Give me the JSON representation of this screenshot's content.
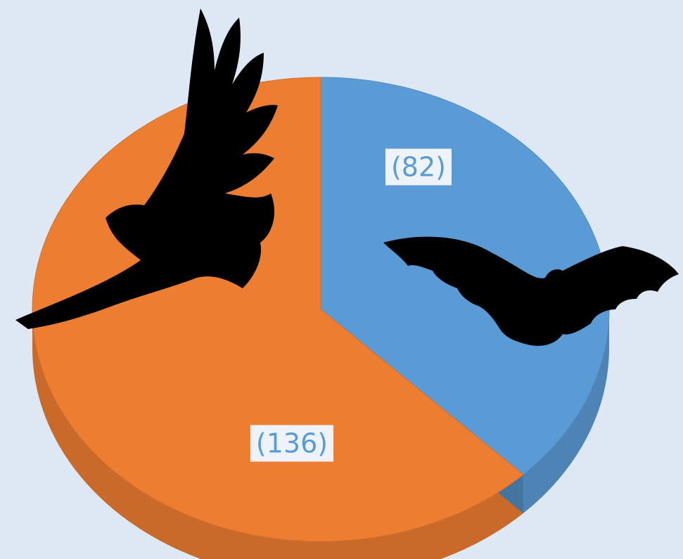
{
  "chart_data": {
    "type": "pie",
    "values": [
      82,
      136
    ],
    "value_labels": [
      "(82)",
      "(136)"
    ],
    "colors": [
      "#5b9bd5",
      "#ed7d31"
    ]
  }
}
